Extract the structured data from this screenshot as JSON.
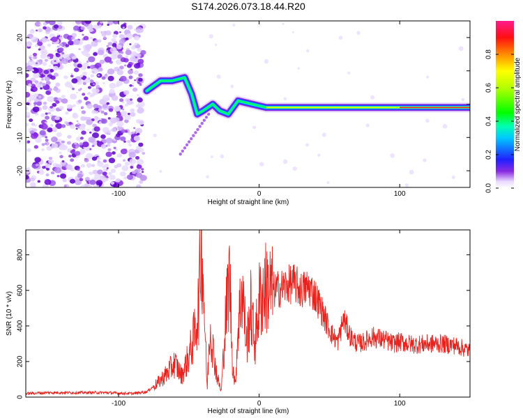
{
  "title": "S174.2026.073.18.44.R20",
  "chart_data": [
    {
      "type": "heatmap",
      "xlabel": "Height of straight line (km)",
      "ylabel": "Frequency (Hz)",
      "xlim": [
        -166,
        150
      ],
      "ylim": [
        -25,
        25
      ],
      "xticks": [
        -100,
        0,
        100
      ],
      "yticks": [
        -20,
        -10,
        0,
        10,
        20
      ],
      "colorbar": {
        "label": "Normalized spectral amplitude",
        "range": [
          0,
          1
        ],
        "ticks": [
          0.0,
          0.2,
          0.4,
          0.6,
          0.8
        ]
      },
      "ridge": [
        {
          "x": -80,
          "y": 4
        },
        {
          "x": -70,
          "y": 7
        },
        {
          "x": -62,
          "y": 7
        },
        {
          "x": -53,
          "y": 8
        },
        {
          "x": -48,
          "y": 3
        },
        {
          "x": -44,
          "y": -3
        },
        {
          "x": -40,
          "y": -2
        },
        {
          "x": -33,
          "y": 0
        },
        {
          "x": -28,
          "y": -2
        },
        {
          "x": -22,
          "y": -3
        },
        {
          "x": -15,
          "y": 1
        },
        {
          "x": -5,
          "y": 0
        },
        {
          "x": 5,
          "y": -1
        },
        {
          "x": 50,
          "y": -1
        },
        {
          "x": 100,
          "y": -1
        },
        {
          "x": 150,
          "y": -1
        }
      ]
    },
    {
      "type": "line",
      "xlabel": "Height of straight line (km)",
      "ylabel": "SNR (10 * v/v)",
      "xlim": [
        -166,
        150
      ],
      "ylim": [
        0,
        940
      ],
      "xticks": [
        -100,
        0,
        100
      ],
      "yticks": [
        0,
        200,
        400,
        600,
        800
      ],
      "color": "#e8231e",
      "series": [
        {
          "x": [
            -166,
            -150,
            -130,
            -110,
            -90,
            -80,
            -72,
            -66,
            -60,
            -55,
            -50,
            -46,
            -43,
            -41,
            -39,
            -37,
            -35,
            -33,
            -30,
            -27,
            -24,
            -21,
            -19,
            -17,
            -15,
            -12,
            -9,
            -6,
            -3,
            0,
            5,
            10,
            15,
            20,
            25,
            30,
            35,
            40,
            44,
            48,
            52,
            56,
            60,
            65,
            70,
            75,
            80,
            85,
            90,
            95,
            100,
            110,
            120,
            130,
            140,
            150
          ],
          "values": [
            20,
            25,
            25,
            25,
            20,
            30,
            80,
            130,
            190,
            120,
            230,
            350,
            520,
            930,
            500,
            40,
            420,
            280,
            120,
            30,
            420,
            700,
            200,
            60,
            400,
            620,
            300,
            500,
            300,
            540,
            620,
            600,
            610,
            630,
            640,
            600,
            620,
            570,
            500,
            420,
            350,
            310,
            440,
            340,
            300,
            310,
            340,
            330,
            320,
            300,
            310,
            295,
            300,
            300,
            290,
            260
          ]
        }
      ]
    }
  ]
}
